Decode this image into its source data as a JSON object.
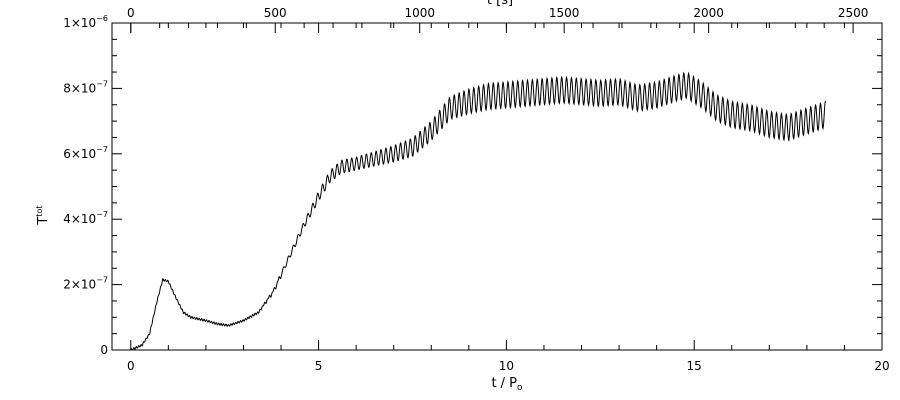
{
  "chart_data": {
    "type": "line",
    "xlabel": "t / P",
    "xlabel_sub": "o",
    "top_xlabel": "t [s]",
    "ylabel": "T",
    "ylabel_sup": "tot",
    "xlim": [
      -0.5,
      20
    ],
    "ylim": [
      0,
      1e-06
    ],
    "top_xlim": [
      -65,
      2600
    ],
    "x_ticks": [
      "0",
      "5",
      "10",
      "15",
      "20"
    ],
    "top_x_ticks": [
      "0",
      "500",
      "1000",
      "1500",
      "2000",
      "2500"
    ],
    "y_ticks": [
      {
        "value": 0,
        "mant": "0",
        "exp": ""
      },
      {
        "value": 2e-07,
        "mant": "2×10",
        "exp": "−7"
      },
      {
        "value": 4e-07,
        "mant": "4×10",
        "exp": "−7"
      },
      {
        "value": 6e-07,
        "mant": "6×10",
        "exp": "−7"
      },
      {
        "value": 8e-07,
        "mant": "8×10",
        "exp": "−7"
      },
      {
        "value": 1e-06,
        "mant": "1×10",
        "exp": "−6"
      }
    ],
    "grid": false,
    "series": [
      {
        "x": [
          0,
          0.3,
          0.5,
          0.7,
          0.85,
          1.0,
          1.2,
          1.4,
          1.6,
          1.8,
          2.0,
          2.3,
          2.6,
          3.0,
          3.4,
          3.8,
          4.2,
          4.6,
          5.0,
          5.3,
          5.6,
          6.0,
          6.5,
          7.0,
          7.5,
          8.0,
          8.5,
          9.0,
          9.5,
          10.0,
          10.5,
          11.0,
          11.5,
          12.0,
          12.5,
          13.0,
          13.5,
          14.0,
          14.5,
          14.8,
          15.2,
          15.6,
          16.0,
          16.5,
          17.0,
          17.5,
          18.0,
          18.5
        ],
        "y": [
          0,
          1.5e-08,
          5e-08,
          1.5e-07,
          2.15e-07,
          2.1e-07,
          1.6e-07,
          1.15e-07,
          1e-07,
          9.5e-08,
          9e-08,
          8e-08,
          7.5e-08,
          9e-08,
          1.15e-07,
          1.8e-07,
          2.8e-07,
          3.8e-07,
          4.7e-07,
          5.3e-07,
          5.6e-07,
          5.7e-07,
          5.85e-07,
          6e-07,
          6.2e-07,
          6.7e-07,
          7.4e-07,
          7.6e-07,
          7.75e-07,
          7.8e-07,
          7.85e-07,
          7.9e-07,
          7.95e-07,
          7.9e-07,
          7.85e-07,
          7.9e-07,
          7.7e-07,
          7.8e-07,
          8e-07,
          8.1e-07,
          7.8e-07,
          7.4e-07,
          7.2e-07,
          7.1e-07,
          6.9e-07,
          6.8e-07,
          7e-07,
          7.2e-07
        ],
        "osc_amp": [
          0,
          0,
          0,
          0,
          0,
          0,
          0,
          0,
          0,
          0,
          0,
          0,
          0,
          0,
          0,
          5e-09,
          8e-09,
          1e-08,
          1.5e-08,
          1.8e-08,
          2e-08,
          2e-08,
          2.2e-08,
          2.5e-08,
          2.8e-08,
          3e-08,
          3.5e-08,
          3.8e-08,
          4e-08,
          4e-08,
          4e-08,
          4e-08,
          4e-08,
          4e-08,
          4e-08,
          4e-08,
          4e-08,
          4e-08,
          4e-08,
          4e-08,
          4e-08,
          4e-08,
          4e-08,
          4e-08,
          4e-08,
          4e-08,
          4e-08,
          4e-08
        ],
        "osc_period": 0.13
      }
    ]
  }
}
